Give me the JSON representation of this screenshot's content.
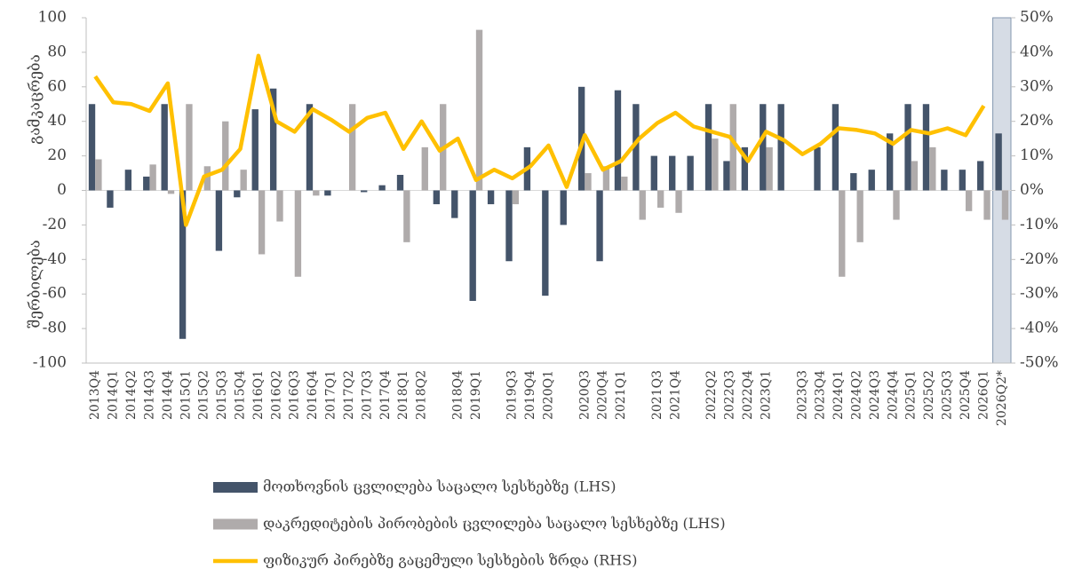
{
  "chart_data": {
    "type": "bar_line",
    "y_label_top": "გამკაცრება",
    "y_label_bottom": "შერბილება",
    "categories": [
      "2013Q4",
      "2014Q1",
      "2014Q2",
      "2014Q3",
      "2014Q4",
      "2015Q1",
      "2015Q2",
      "2015Q3",
      "2015Q4",
      "2016Q1",
      "2016Q2",
      "2016Q3",
      "2016Q4",
      "2017Q1",
      "2017Q2",
      "2017Q3",
      "2017Q4",
      "2018Q1",
      "2018Q2",
      null,
      "2018Q4",
      "2019Q1",
      null,
      "2019Q3",
      "2019Q4",
      "2020Q1",
      null,
      "2020Q3",
      "2020Q4",
      "2021Q1",
      null,
      "2021Q3",
      "2021Q4",
      null,
      "2022Q2",
      "2022Q3",
      "2022Q4",
      "2023Q1",
      null,
      "2023Q3",
      "2023Q4",
      "2024Q1",
      "2024Q2",
      "2024Q3",
      "2024Q4",
      "2025Q1",
      "2025Q2",
      "2025Q3",
      "2025Q4",
      "2026Q1",
      "2026Q2*"
    ],
    "series": [
      {
        "name": "მოთხოვნის ცვლილება საცალო სესხებზე (LHS)",
        "color": "#44546a",
        "kind": "bar",
        "values": [
          50,
          -10,
          12,
          8,
          50,
          -86,
          0,
          -35,
          -4,
          47,
          59,
          0,
          50,
          -3,
          0,
          -1,
          3,
          9,
          0,
          -8,
          -16,
          -64,
          -8,
          -41,
          25,
          -61,
          -20,
          60,
          -41,
          58,
          50,
          20,
          20,
          20,
          50,
          17,
          25,
          50,
          50,
          0,
          25,
          50,
          10,
          12,
          33,
          50,
          50,
          12,
          12,
          17,
          33
        ]
      },
      {
        "name": "დაკრედიტების პირობების ცვლილება საცალო სესხებზე (LHS)",
        "color": "#afabab",
        "kind": "bar",
        "values": [
          18,
          0,
          0,
          15,
          -2,
          50,
          14,
          40,
          12,
          -37,
          -18,
          -50,
          -3,
          0,
          50,
          0,
          0,
          -30,
          25,
          50,
          0,
          93,
          0,
          -8,
          0,
          0,
          0,
          10,
          14,
          8,
          -17,
          -10,
          -13,
          0,
          30,
          50,
          0,
          25,
          0,
          0,
          0,
          -50,
          -30,
          0,
          -17,
          17,
          25,
          0,
          -12,
          -17,
          -17
        ]
      },
      {
        "name": "ფიზიკურ პირებზე გაცემული სესხების ზრდა (RHS)",
        "color": "#ffc000",
        "kind": "line",
        "axis": "y2",
        "values": [
          33,
          25.5,
          25,
          23,
          31,
          -10,
          4,
          6,
          12,
          39,
          20,
          17,
          23.5,
          20.5,
          17,
          21,
          22.5,
          12,
          20,
          11.5,
          15,
          3,
          6,
          3.5,
          7,
          13,
          1,
          16,
          6,
          8.5,
          15,
          19.5,
          22.5,
          18.5,
          17,
          15.5,
          8.5,
          17,
          14.5,
          10.5,
          13.5,
          18,
          17.5,
          16.5,
          13.5,
          17.5,
          16.5,
          18,
          16,
          24.5,
          null
        ]
      }
    ],
    "ylim": [
      -100,
      100
    ],
    "yticks": [
      -100,
      -80,
      -60,
      -40,
      -20,
      0,
      20,
      40,
      60,
      80,
      100
    ],
    "y2lim": [
      -50,
      50
    ],
    "y2ticks": [
      {
        "value": -50,
        "label": "-50%"
      },
      {
        "value": -40,
        "label": "-40%"
      },
      {
        "value": -30,
        "label": "-30%"
      },
      {
        "value": -20,
        "label": "-20%"
      },
      {
        "value": -10,
        "label": "-10%"
      },
      {
        "value": 0,
        "label": "0%"
      },
      {
        "value": 10,
        "label": "10%"
      },
      {
        "value": 20,
        "label": "20%"
      },
      {
        "value": 30,
        "label": "30%"
      },
      {
        "value": 40,
        "label": "40%"
      },
      {
        "value": 50,
        "label": "50%"
      }
    ],
    "legend": "bottom"
  }
}
